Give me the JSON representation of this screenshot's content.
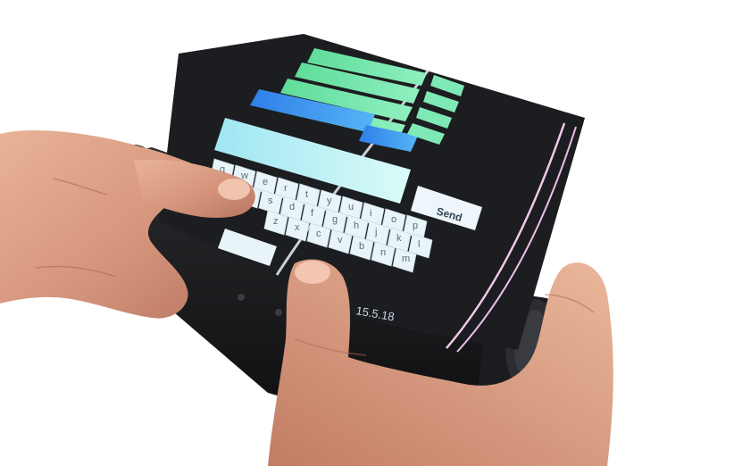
{
  "scene": {
    "description_visible": false
  },
  "keyboard": {
    "rows": [
      [
        "q",
        "w",
        "e",
        "r",
        "t",
        "y",
        "u",
        "i",
        "o",
        "p"
      ],
      [
        "a",
        "s",
        "d",
        "f",
        "g",
        "h",
        "j",
        "k",
        "l"
      ],
      [
        "z",
        "x",
        "c",
        "v",
        "b",
        "n",
        "m"
      ]
    ],
    "send_label": "Send"
  },
  "status": {
    "date_text": "15.5.18"
  },
  "colors": {
    "screen_bg": "#1c1d20",
    "list_green": "#6fe6a8",
    "list_blue": "#3a8cf0",
    "input_cyan": "#bff6f4",
    "key_bg": "#e8f4f8",
    "send_bg": "#eef6fb"
  }
}
